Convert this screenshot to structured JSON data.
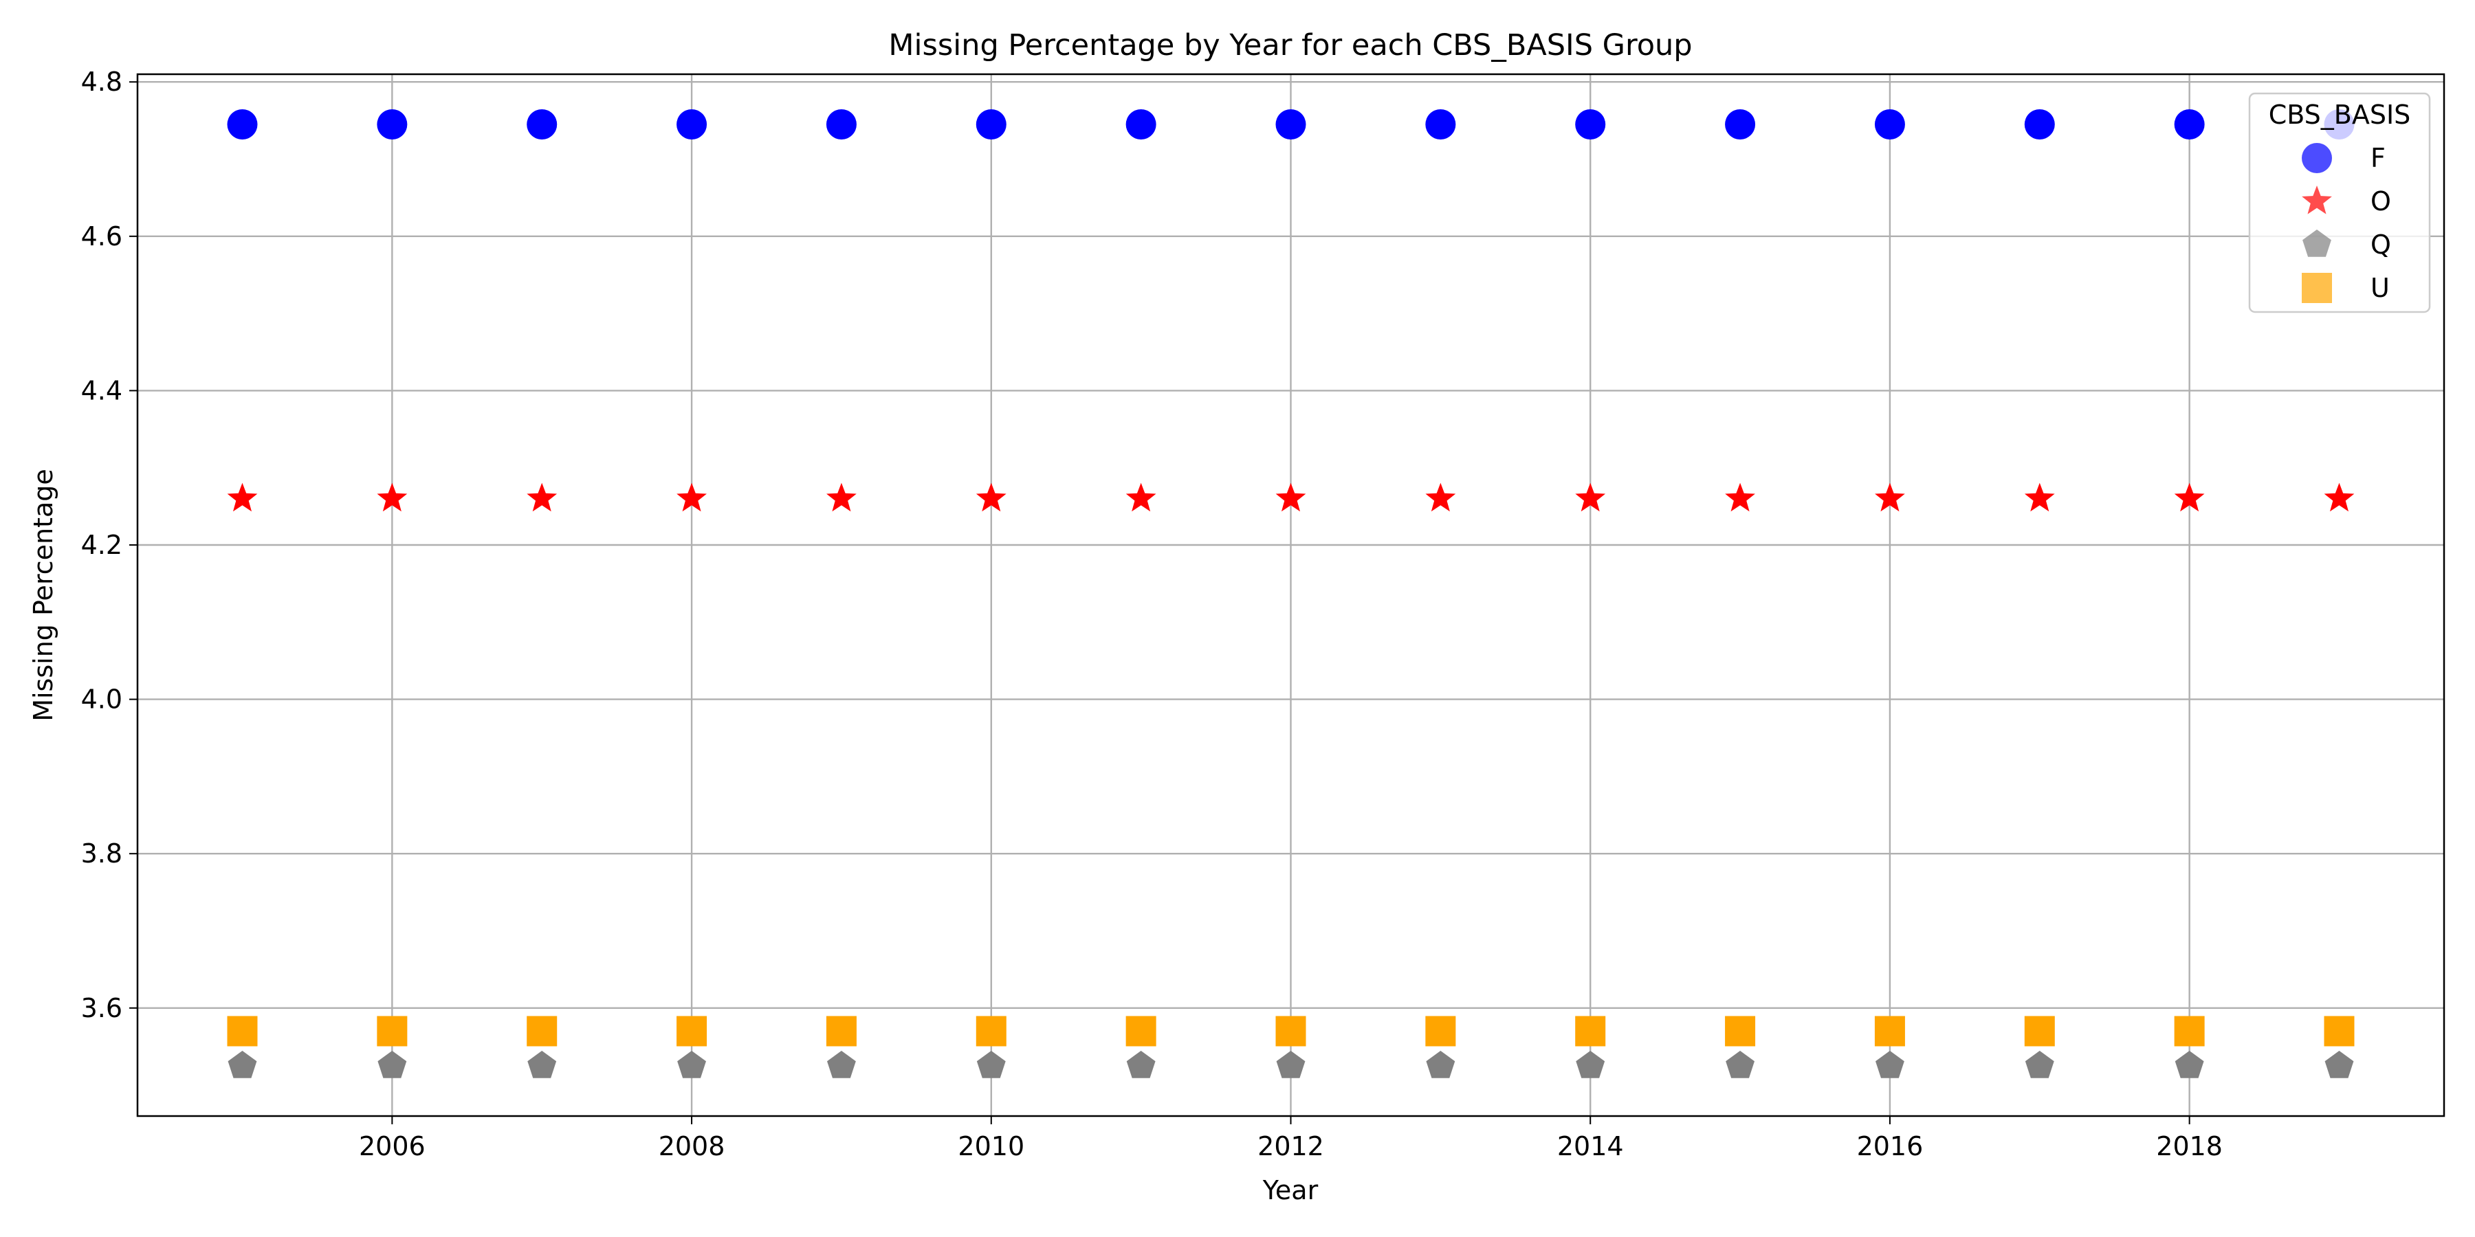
{
  "chart_data": {
    "type": "scatter",
    "title": "Missing Percentage by Year for each CBS_BASIS Group",
    "xlabel": "Year",
    "ylabel": "Missing Percentage",
    "xlim": [
      2004.3,
      2019.7
    ],
    "ylim": [
      3.46,
      4.81
    ],
    "xticks": [
      2006,
      2008,
      2010,
      2012,
      2014,
      2016,
      2018
    ],
    "xtick_labels": [
      "2006",
      "2008",
      "2010",
      "2012",
      "2014",
      "2016",
      "2018"
    ],
    "yticks": [
      3.6,
      3.8,
      4.0,
      4.2,
      4.4,
      4.6,
      4.8
    ],
    "ytick_labels": [
      "3.6",
      "3.8",
      "4.0",
      "4.2",
      "4.4",
      "4.6",
      "4.8"
    ],
    "grid": true,
    "legend_title": "CBS_BASIS",
    "legend_position": "top-right",
    "x": [
      2005,
      2006,
      2007,
      2008,
      2009,
      2010,
      2011,
      2012,
      2013,
      2014,
      2015,
      2016,
      2017,
      2018,
      2019
    ],
    "series": [
      {
        "name": "F",
        "marker": "circle",
        "color": "#0000ff",
        "values": [
          4.745,
          4.745,
          4.745,
          4.745,
          4.745,
          4.745,
          4.745,
          4.745,
          4.745,
          4.745,
          4.745,
          4.745,
          4.745,
          4.745,
          4.745
        ]
      },
      {
        "name": "O",
        "marker": "star",
        "color": "#ff0000",
        "values": [
          4.26,
          4.26,
          4.26,
          4.26,
          4.26,
          4.26,
          4.26,
          4.26,
          4.26,
          4.26,
          4.26,
          4.26,
          4.26,
          4.26,
          4.26
        ]
      },
      {
        "name": "Q",
        "marker": "pentagon",
        "color": "#808080",
        "values": [
          3.525,
          3.525,
          3.525,
          3.525,
          3.525,
          3.525,
          3.525,
          3.525,
          3.525,
          3.525,
          3.525,
          3.525,
          3.525,
          3.525,
          3.525
        ]
      },
      {
        "name": "U",
        "marker": "square",
        "color": "#ffa500",
        "values": [
          3.57,
          3.57,
          3.57,
          3.57,
          3.57,
          3.57,
          3.57,
          3.57,
          3.57,
          3.57,
          3.57,
          3.57,
          3.57,
          3.57,
          3.57
        ]
      }
    ]
  }
}
